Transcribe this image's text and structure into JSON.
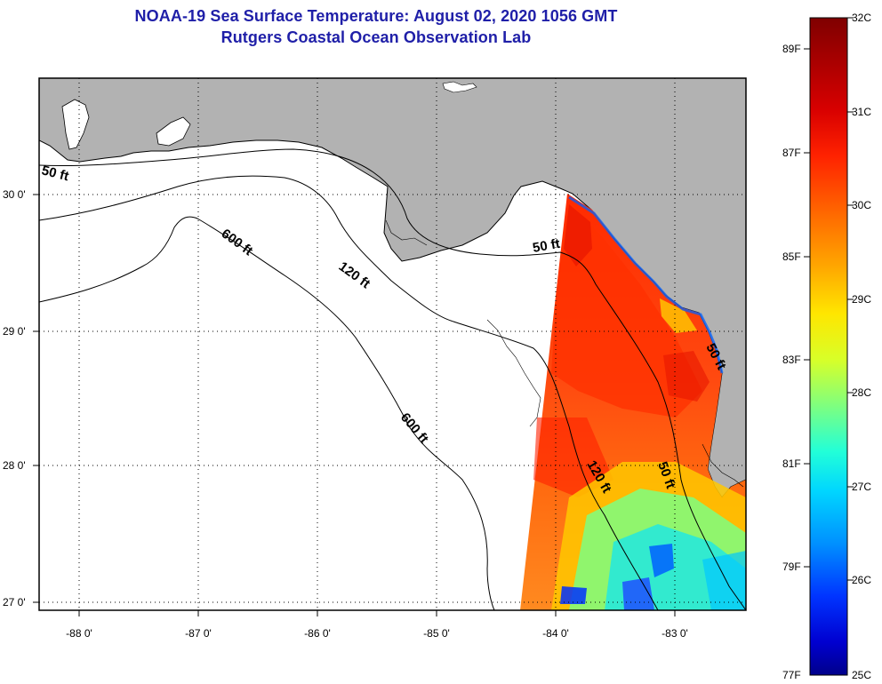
{
  "header": {
    "title_line1": "NOAA-19 Sea Surface Temperature:  August 02, 2020 1056 GMT",
    "title_line2": "Rutgers Coastal Ocean Observation Lab"
  },
  "map": {
    "lat_labels": [
      "30 0'",
      "29 0'",
      "28 0'",
      "27 0'"
    ],
    "lon_labels": [
      "-88 0'",
      "-87 0'",
      "-86 0'",
      "-85 0'",
      "-84 0'",
      "-83 0'"
    ],
    "contour_labels": [
      "50 ft",
      "600 ft",
      "120 ft",
      "50 ft",
      "600 ft",
      "120 ft",
      "50 ft",
      "50 ft"
    ]
  },
  "colorbar": {
    "fahrenheit_labels": [
      "89F",
      "87F",
      "85F",
      "83F",
      "81F",
      "79F",
      "77F"
    ],
    "celsius_labels": [
      "32C",
      "31C",
      "30C",
      "29C",
      "28C",
      "27C",
      "26C",
      "25C"
    ],
    "colors": [
      "#7f0000",
      "#d40000",
      "#ff2a00",
      "#ff7a00",
      "#ffcf00",
      "#e0ff1e",
      "#88ff77",
      "#2affd0",
      "#00c8ff",
      "#0078ff",
      "#0020ff",
      "#00008f"
    ]
  }
}
